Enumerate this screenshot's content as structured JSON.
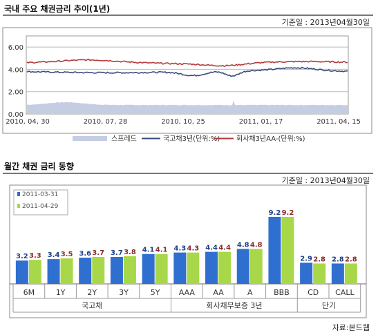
{
  "trend": {
    "title": "국내 주요 채권금리 추이(1년)",
    "base_date": "기준일 : 2013년04월30일"
  },
  "monthly": {
    "title": "월간 채권 금리 동향",
    "base_date": "기준일 : 2013년04월30일"
  },
  "source": "자료:본드웹",
  "colors": {
    "spread": "#c5cde3",
    "gov": "#3a4a7a",
    "corp": "#b23a3a",
    "bar_prev": "#2f6fd0",
    "bar_curr": "#a8d84a",
    "label_prev": "#1f3f8a",
    "label_curr": "#8a2a2a"
  },
  "chart_data": [
    {
      "type": "line",
      "yticks": [
        "6.00",
        "4.00",
        "2.00",
        "0.00"
      ],
      "ylim": [
        0,
        7
      ],
      "xticks": [
        "2010, 04, 30",
        "2010, 07, 28",
        "2010, 10, 25",
        "2011, 01, 17",
        "2011, 04, 15"
      ],
      "series": [
        {
          "name": "스프레드",
          "kind": "area",
          "level": 0.8
        },
        {
          "name": "국고채3년(단위:%)",
          "kind": "line",
          "level": 3.8
        },
        {
          "name": "회사채3년AA-(단위:%)",
          "kind": "line",
          "level": 4.6
        }
      ]
    },
    {
      "type": "bar",
      "categories": [
        "6M",
        "1Y",
        "2Y",
        "3Y",
        "5Y",
        "AAA",
        "AA",
        "A",
        "BBB",
        "CD",
        "CALL"
      ],
      "groups": [
        {
          "label": "국고채",
          "span": 5
        },
        {
          "label": "회사채무보증 3년",
          "span": 4
        },
        {
          "label": "단기",
          "span": 2
        }
      ],
      "series": [
        {
          "name": "2011-03-31",
          "values": [
            3.2,
            3.4,
            3.6,
            3.7,
            4.1,
            4.3,
            4.4,
            4.8,
            9.2,
            2.9,
            2.8
          ]
        },
        {
          "name": "2011-04-29",
          "values": [
            3.3,
            3.5,
            3.7,
            3.8,
            4.1,
            4.3,
            4.4,
            4.8,
            9.2,
            2.8,
            2.8
          ]
        }
      ]
    }
  ]
}
